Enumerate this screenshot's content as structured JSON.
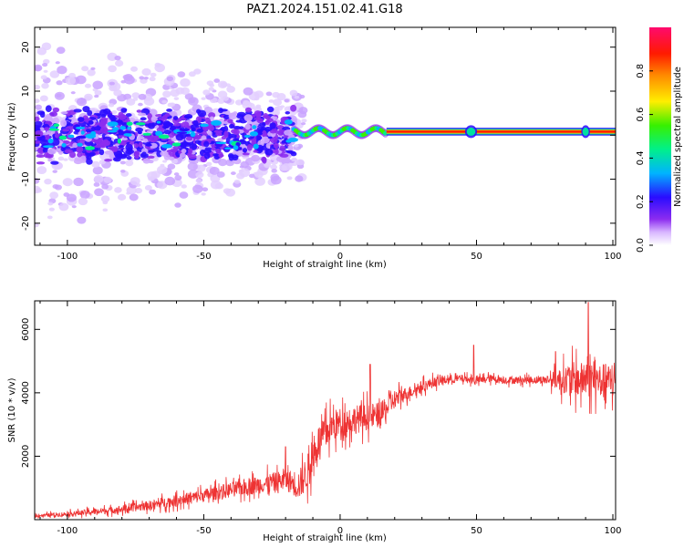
{
  "title": "PAZ1.2024.151.02.41.G18",
  "chart_data": [
    {
      "type": "heatmap",
      "xlabel": "Height of straight line (km)",
      "ylabel": "Frequency (Hz)",
      "xlim": [
        -112,
        101
      ],
      "ylim": [
        -25,
        24.5
      ],
      "xticks": [
        -100,
        -50,
        0,
        50,
        100
      ],
      "yticks": [
        20,
        10,
        0,
        -10,
        -20
      ],
      "colorbar": {
        "label": "Normalized spectral amplitude",
        "range": [
          0,
          1
        ],
        "ticks": [
          "0.0",
          "0.2",
          "0.4",
          "0.6",
          "0.8"
        ],
        "colormap": "white-purple-blue-cyan-green-yellow-orange-red-pink",
        "stops": [
          "#ffffff",
          "#cfa8ff",
          "#8c2cf0",
          "#2a0cff",
          "#00b3ff",
          "#00f08a",
          "#38f000",
          "#ffee00",
          "#ff8a00",
          "#ff1a00",
          "#ff0a6e"
        ]
      },
      "regions": [
        {
          "x": [
            -112,
            -17
          ],
          "frequency_spread_hz": 22,
          "peak_amplitude": 0.45,
          "description_level": "noisy"
        },
        {
          "x": [
            -17,
            17
          ],
          "frequency_hz": 0.8,
          "peak_amplitude": 0.6
        },
        {
          "x": [
            17,
            101
          ],
          "frequency_hz": 0.8,
          "peak_amplitude": 1.0
        }
      ]
    },
    {
      "type": "line",
      "xlabel": "Height of straight line (km)",
      "ylabel": "SNR (10 * v/v)",
      "xlim": [
        -112,
        101
      ],
      "ylim": [
        0,
        6900
      ],
      "xticks": [
        -100,
        -50,
        0,
        50,
        100
      ],
      "yticks": [
        2000,
        4000,
        6000
      ],
      "color": "#ee3333",
      "trend_points": [
        [
          -112,
          120
        ],
        [
          -100,
          180
        ],
        [
          -90,
          250
        ],
        [
          -80,
          330
        ],
        [
          -70,
          450
        ],
        [
          -60,
          600
        ],
        [
          -50,
          760
        ],
        [
          -40,
          940
        ],
        [
          -30,
          1100
        ],
        [
          -20,
          1250
        ],
        [
          -15,
          1100
        ],
        [
          -12,
          1500
        ],
        [
          -8,
          2450
        ],
        [
          -3,
          2950
        ],
        [
          0,
          3050
        ],
        [
          5,
          3150
        ],
        [
          10,
          3250
        ],
        [
          15,
          3300
        ],
        [
          20,
          3800
        ],
        [
          25,
          4000
        ],
        [
          30,
          4200
        ],
        [
          35,
          4350
        ],
        [
          40,
          4420
        ],
        [
          45,
          4450
        ],
        [
          50,
          4380
        ],
        [
          55,
          4450
        ],
        [
          60,
          4400
        ],
        [
          70,
          4400
        ],
        [
          80,
          4420
        ],
        [
          90,
          4400
        ],
        [
          101,
          4350
        ]
      ],
      "noise_amplitude": [
        [
          -112,
          60
        ],
        [
          -80,
          150
        ],
        [
          -50,
          260
        ],
        [
          -20,
          400
        ],
        [
          -12,
          700
        ],
        [
          0,
          600
        ],
        [
          15,
          500
        ],
        [
          25,
          250
        ],
        [
          45,
          150
        ],
        [
          75,
          150
        ],
        [
          85,
          700
        ],
        [
          101,
          700
        ]
      ],
      "spikes": [
        [
          -112,
          200
        ],
        [
          -20,
          2300
        ],
        [
          11,
          4900
        ],
        [
          49,
          5500
        ],
        [
          91,
          6850
        ],
        [
          79,
          5300
        ]
      ]
    }
  ]
}
